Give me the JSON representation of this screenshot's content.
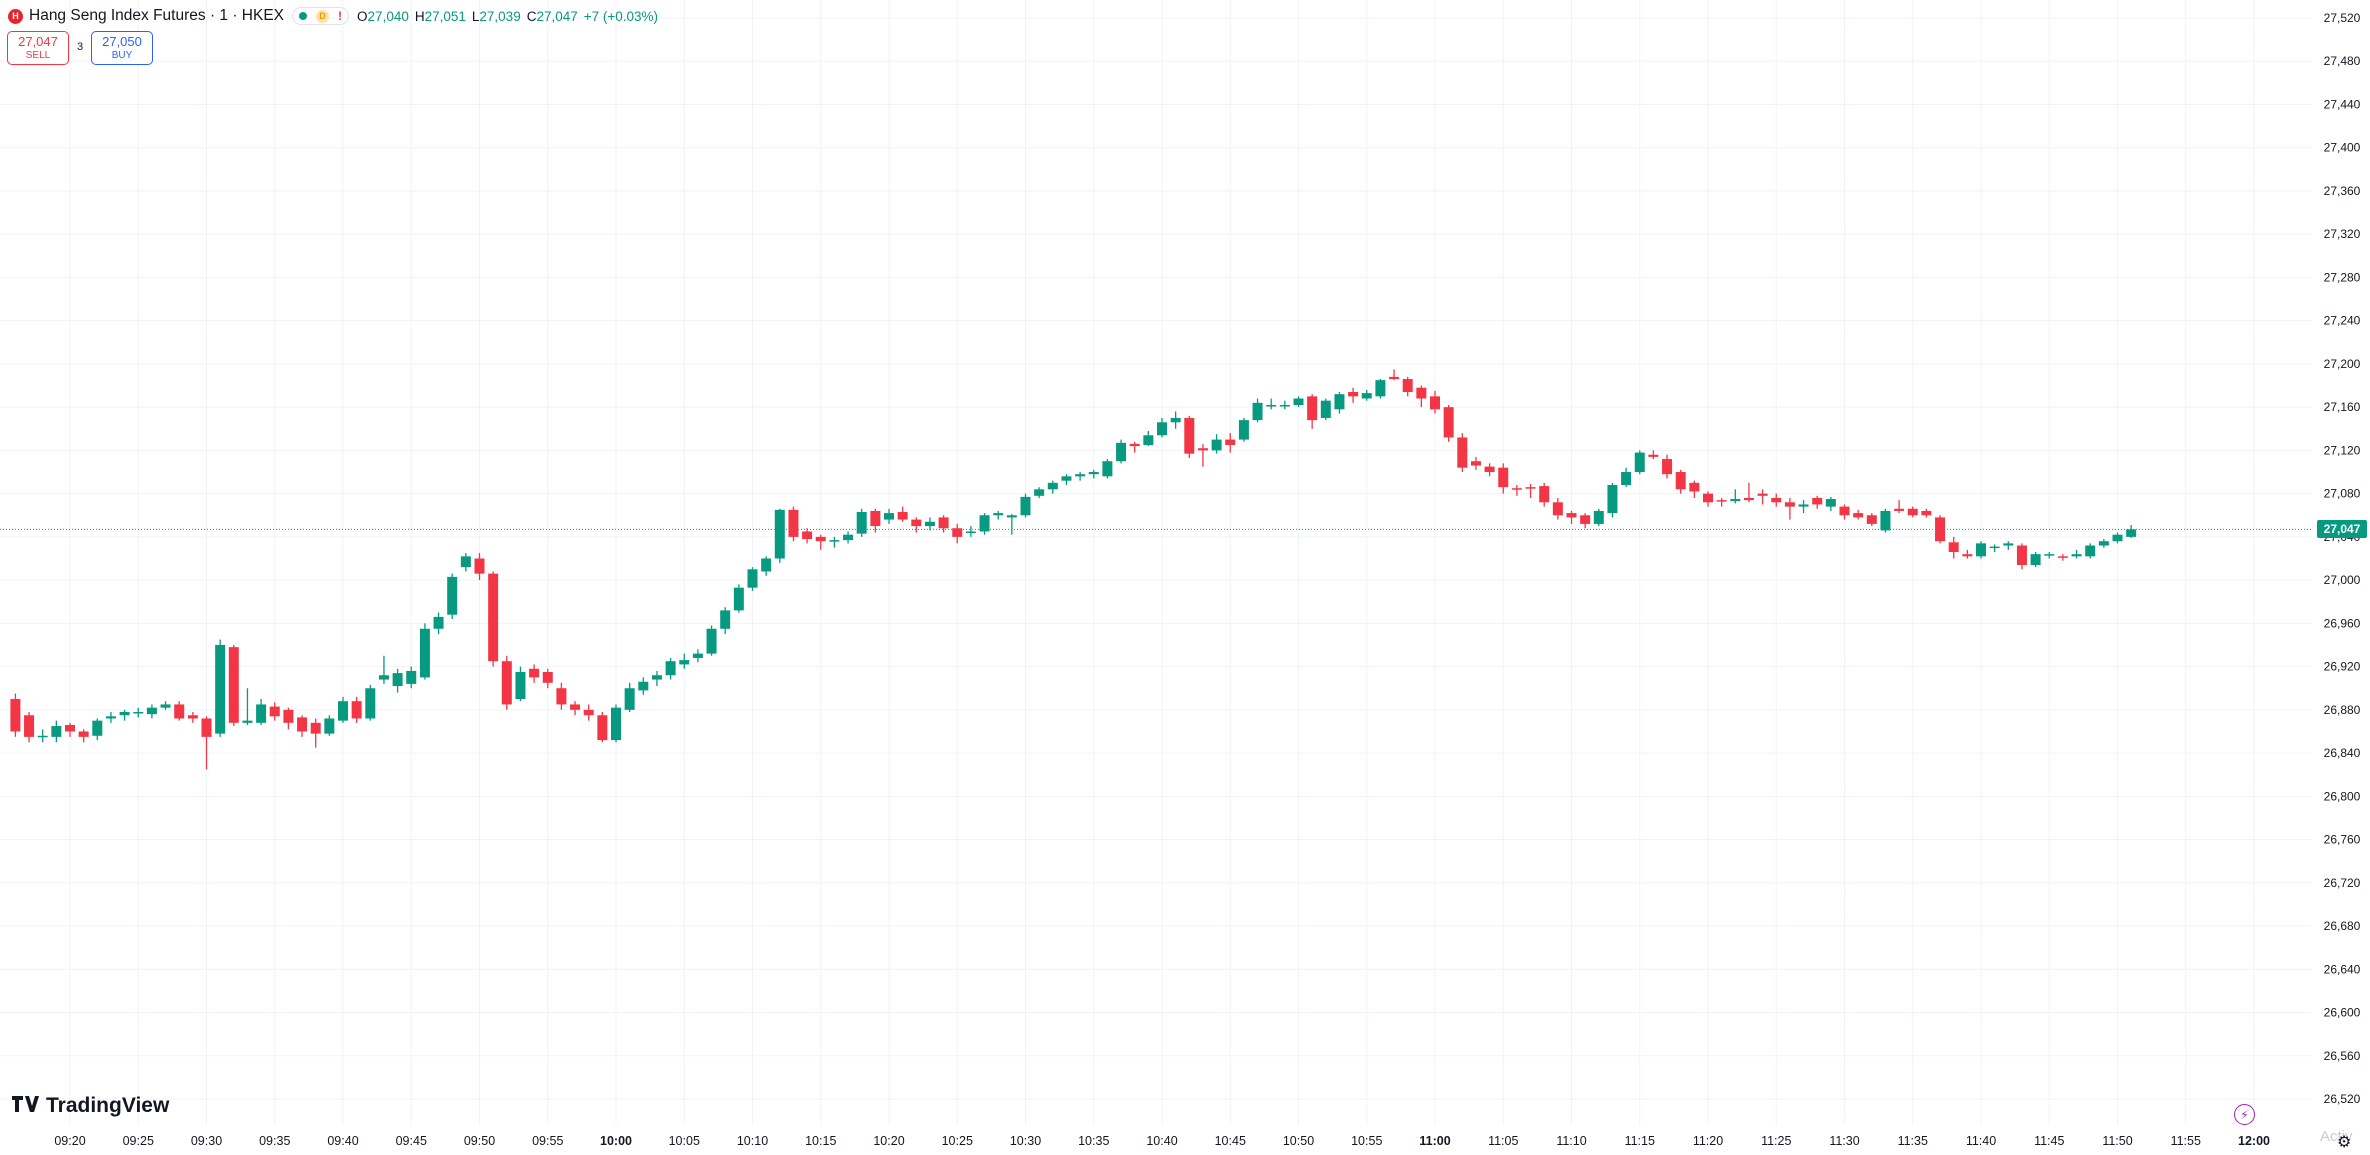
{
  "header": {
    "symbol_title": "Hang Seng Index Futures · 1 · HKEX",
    "badge_letter": "H",
    "status_d": "D",
    "status_warn": "!",
    "ohlc": {
      "open_label": "O",
      "open": "27,040",
      "high_label": "H",
      "high": "27,051",
      "low_label": "L",
      "low": "27,039",
      "close_label": "C",
      "close": "27,047",
      "change": "+7 (+0.03%)"
    }
  },
  "trade": {
    "sell_price": "27,047",
    "sell_label": "SELL",
    "buy_price": "27,050",
    "buy_label": "BUY",
    "spread": "3"
  },
  "branding": {
    "logo_text": "TradingView"
  },
  "current_price": "27,047",
  "watermark": "Activ",
  "colors": {
    "up": "#089981",
    "down": "#f23645",
    "grid": "#f0f3fa",
    "accent": "#2962ff"
  },
  "icons": {
    "bolt": "bolt-icon",
    "settings": "gear-icon"
  },
  "chart_data": {
    "type": "candlestick",
    "interval": "1",
    "ylim": [
      26500,
      27540
    ],
    "y_ticks": [
      "27,520",
      "27,480",
      "27,440",
      "27,400",
      "27,360",
      "27,320",
      "27,280",
      "27,240",
      "27,200",
      "27,160",
      "27,120",
      "27,080",
      "27,040",
      "27,000",
      "26,960",
      "26,920",
      "26,880",
      "26,840",
      "26,800",
      "26,760",
      "26,720",
      "26,680",
      "26,640",
      "26,600",
      "26,560",
      "26,520"
    ],
    "x_ticks": [
      "09:20",
      "09:25",
      "09:30",
      "09:35",
      "09:40",
      "09:45",
      "09:50",
      "09:55",
      "10:00",
      "10:05",
      "10:10",
      "10:15",
      "10:20",
      "10:25",
      "10:30",
      "10:35",
      "10:40",
      "10:45",
      "10:50",
      "10:55",
      "11:00",
      "11:05",
      "11:10",
      "11:15",
      "11:20",
      "11:25",
      "11:30",
      "11:35",
      "11:40",
      "11:45",
      "11:50",
      "11:55",
      "12:00"
    ],
    "bold_x_ticks": [
      "10:00",
      "11:00",
      "12:00"
    ],
    "start_time": "09:16",
    "candles": [
      {
        "o": 26890,
        "h": 26895,
        "l": 26855,
        "c": 26860
      },
      {
        "o": 26875,
        "h": 26878,
        "l": 26850,
        "c": 26855
      },
      {
        "o": 26855,
        "h": 26862,
        "l": 26850,
        "c": 26856
      },
      {
        "o": 26855,
        "h": 26870,
        "l": 26850,
        "c": 26865
      },
      {
        "o": 26866,
        "h": 26868,
        "l": 26855,
        "c": 26860
      },
      {
        "o": 26860,
        "h": 26862,
        "l": 26850,
        "c": 26855
      },
      {
        "o": 26856,
        "h": 26872,
        "l": 26852,
        "c": 26870
      },
      {
        "o": 26872,
        "h": 26878,
        "l": 26868,
        "c": 26874
      },
      {
        "o": 26875,
        "h": 26880,
        "l": 26870,
        "c": 26878
      },
      {
        "o": 26878,
        "h": 26882,
        "l": 26873,
        "c": 26878
      },
      {
        "o": 26876,
        "h": 26885,
        "l": 26872,
        "c": 26882
      },
      {
        "o": 26882,
        "h": 26888,
        "l": 26880,
        "c": 26885
      },
      {
        "o": 26885,
        "h": 26888,
        "l": 26870,
        "c": 26872
      },
      {
        "o": 26875,
        "h": 26878,
        "l": 26868,
        "c": 26872
      },
      {
        "o": 26872,
        "h": 26874,
        "l": 26825,
        "c": 26855
      },
      {
        "o": 26858,
        "h": 26945,
        "l": 26855,
        "c": 26940
      },
      {
        "o": 26938,
        "h": 26940,
        "l": 26865,
        "c": 26868
      },
      {
        "o": 26868,
        "h": 26900,
        "l": 26866,
        "c": 26870
      },
      {
        "o": 26868,
        "h": 26890,
        "l": 26866,
        "c": 26885
      },
      {
        "o": 26883,
        "h": 26887,
        "l": 26870,
        "c": 26874
      },
      {
        "o": 26880,
        "h": 26882,
        "l": 26862,
        "c": 26868
      },
      {
        "o": 26873,
        "h": 26875,
        "l": 26855,
        "c": 26860
      },
      {
        "o": 26868,
        "h": 26872,
        "l": 26845,
        "c": 26858
      },
      {
        "o": 26858,
        "h": 26875,
        "l": 26856,
        "c": 26872
      },
      {
        "o": 26870,
        "h": 26892,
        "l": 26868,
        "c": 26888
      },
      {
        "o": 26888,
        "h": 26892,
        "l": 26868,
        "c": 26872
      },
      {
        "o": 26872,
        "h": 26903,
        "l": 26870,
        "c": 26900
      },
      {
        "o": 26908,
        "h": 26930,
        "l": 26904,
        "c": 26912
      },
      {
        "o": 26902,
        "h": 26918,
        "l": 26896,
        "c": 26914
      },
      {
        "o": 26904,
        "h": 26920,
        "l": 26900,
        "c": 26916
      },
      {
        "o": 26910,
        "h": 26960,
        "l": 26908,
        "c": 26955
      },
      {
        "o": 26955,
        "h": 26970,
        "l": 26950,
        "c": 26966
      },
      {
        "o": 26968,
        "h": 27006,
        "l": 26964,
        "c": 27003
      },
      {
        "o": 27012,
        "h": 27025,
        "l": 27008,
        "c": 27022
      },
      {
        "o": 27020,
        "h": 27025,
        "l": 27000,
        "c": 27006
      },
      {
        "o": 27006,
        "h": 27008,
        "l": 26920,
        "c": 26925
      },
      {
        "o": 26925,
        "h": 26930,
        "l": 26880,
        "c": 26885
      },
      {
        "o": 26890,
        "h": 26920,
        "l": 26888,
        "c": 26915
      },
      {
        "o": 26918,
        "h": 26922,
        "l": 26905,
        "c": 26910
      },
      {
        "o": 26915,
        "h": 26918,
        "l": 26900,
        "c": 26905
      },
      {
        "o": 26900,
        "h": 26905,
        "l": 26880,
        "c": 26885
      },
      {
        "o": 26885,
        "h": 26888,
        "l": 26875,
        "c": 26880
      },
      {
        "o": 26880,
        "h": 26885,
        "l": 26870,
        "c": 26875
      },
      {
        "o": 26875,
        "h": 26878,
        "l": 26850,
        "c": 26852
      },
      {
        "o": 26852,
        "h": 26885,
        "l": 26850,
        "c": 26882
      },
      {
        "o": 26880,
        "h": 26905,
        "l": 26878,
        "c": 26900
      },
      {
        "o": 26898,
        "h": 26910,
        "l": 26894,
        "c": 26906
      },
      {
        "o": 26908,
        "h": 26916,
        "l": 26902,
        "c": 26912
      },
      {
        "o": 26912,
        "h": 26928,
        "l": 26908,
        "c": 26925
      },
      {
        "o": 26922,
        "h": 26932,
        "l": 26918,
        "c": 26926
      },
      {
        "o": 26928,
        "h": 26936,
        "l": 26924,
        "c": 26932
      },
      {
        "o": 26932,
        "h": 26958,
        "l": 26930,
        "c": 26955
      },
      {
        "o": 26955,
        "h": 26975,
        "l": 26950,
        "c": 26972
      },
      {
        "o": 26972,
        "h": 26996,
        "l": 26970,
        "c": 26993
      },
      {
        "o": 26993,
        "h": 27012,
        "l": 26990,
        "c": 27010
      },
      {
        "o": 27008,
        "h": 27022,
        "l": 27004,
        "c": 27020
      },
      {
        "o": 27020,
        "h": 27066,
        "l": 27016,
        "c": 27065
      },
      {
        "o": 27065,
        "h": 27068,
        "l": 27036,
        "c": 27040
      },
      {
        "o": 27045,
        "h": 27048,
        "l": 27034,
        "c": 27038
      },
      {
        "o": 27040,
        "h": 27042,
        "l": 27028,
        "c": 27036
      },
      {
        "o": 27036,
        "h": 27040,
        "l": 27030,
        "c": 27037
      },
      {
        "o": 27037,
        "h": 27045,
        "l": 27034,
        "c": 27042
      },
      {
        "o": 27043,
        "h": 27066,
        "l": 27040,
        "c": 27063
      },
      {
        "o": 27064,
        "h": 27066,
        "l": 27044,
        "c": 27050
      },
      {
        "o": 27056,
        "h": 27066,
        "l": 27052,
        "c": 27062
      },
      {
        "o": 27063,
        "h": 27068,
        "l": 27054,
        "c": 27056
      },
      {
        "o": 27056,
        "h": 27058,
        "l": 27044,
        "c": 27050
      },
      {
        "o": 27050,
        "h": 27058,
        "l": 27046,
        "c": 27054
      },
      {
        "o": 27058,
        "h": 27060,
        "l": 27044,
        "c": 27048
      },
      {
        "o": 27048,
        "h": 27052,
        "l": 27034,
        "c": 27040
      },
      {
        "o": 27044,
        "h": 27050,
        "l": 27040,
        "c": 27045
      },
      {
        "o": 27045,
        "h": 27062,
        "l": 27042,
        "c": 27060
      },
      {
        "o": 27060,
        "h": 27064,
        "l": 27056,
        "c": 27062
      },
      {
        "o": 27058,
        "h": 27061,
        "l": 27042,
        "c": 27060
      },
      {
        "o": 27060,
        "h": 27080,
        "l": 27058,
        "c": 27077
      },
      {
        "o": 27078,
        "h": 27086,
        "l": 27076,
        "c": 27084
      },
      {
        "o": 27084,
        "h": 27092,
        "l": 27080,
        "c": 27090
      },
      {
        "o": 27092,
        "h": 27098,
        "l": 27088,
        "c": 27096
      },
      {
        "o": 27096,
        "h": 27100,
        "l": 27092,
        "c": 27098
      },
      {
        "o": 27098,
        "h": 27102,
        "l": 27094,
        "c": 27100
      },
      {
        "o": 27096,
        "h": 27112,
        "l": 27094,
        "c": 27110
      },
      {
        "o": 27110,
        "h": 27130,
        "l": 27108,
        "c": 27127
      },
      {
        "o": 27126,
        "h": 27128,
        "l": 27118,
        "c": 27124
      },
      {
        "o": 27125,
        "h": 27138,
        "l": 27124,
        "c": 27134
      },
      {
        "o": 27134,
        "h": 27150,
        "l": 27132,
        "c": 27146
      },
      {
        "o": 27146,
        "h": 27156,
        "l": 27140,
        "c": 27150
      },
      {
        "o": 27150,
        "h": 27152,
        "l": 27113,
        "c": 27117
      },
      {
        "o": 27122,
        "h": 27126,
        "l": 27105,
        "c": 27120
      },
      {
        "o": 27120,
        "h": 27135,
        "l": 27117,
        "c": 27130
      },
      {
        "o": 27130,
        "h": 27136,
        "l": 27118,
        "c": 27125
      },
      {
        "o": 27130,
        "h": 27150,
        "l": 27128,
        "c": 27148
      },
      {
        "o": 27148,
        "h": 27168,
        "l": 27146,
        "c": 27164
      },
      {
        "o": 27162,
        "h": 27168,
        "l": 27158,
        "c": 27162
      },
      {
        "o": 27162,
        "h": 27166,
        "l": 27158,
        "c": 27162
      },
      {
        "o": 27162,
        "h": 27170,
        "l": 27160,
        "c": 27168
      },
      {
        "o": 27170,
        "h": 27172,
        "l": 27140,
        "c": 27148
      },
      {
        "o": 27150,
        "h": 27168,
        "l": 27148,
        "c": 27166
      },
      {
        "o": 27158,
        "h": 27174,
        "l": 27154,
        "c": 27172
      },
      {
        "o": 27174,
        "h": 27178,
        "l": 27164,
        "c": 27170
      },
      {
        "o": 27168,
        "h": 27176,
        "l": 27166,
        "c": 27173
      },
      {
        "o": 27170,
        "h": 27186,
        "l": 27168,
        "c": 27185
      },
      {
        "o": 27188,
        "h": 27195,
        "l": 27185,
        "c": 27186
      },
      {
        "o": 27186,
        "h": 27188,
        "l": 27170,
        "c": 27174
      },
      {
        "o": 27178,
        "h": 27180,
        "l": 27160,
        "c": 27168
      },
      {
        "o": 27170,
        "h": 27175,
        "l": 27154,
        "c": 27158
      },
      {
        "o": 27160,
        "h": 27162,
        "l": 27128,
        "c": 27132
      },
      {
        "o": 27132,
        "h": 27136,
        "l": 27100,
        "c": 27104
      },
      {
        "o": 27110,
        "h": 27114,
        "l": 27102,
        "c": 27106
      },
      {
        "o": 27105,
        "h": 27108,
        "l": 27096,
        "c": 27100
      },
      {
        "o": 27104,
        "h": 27108,
        "l": 27080,
        "c": 27086
      },
      {
        "o": 27085,
        "h": 27088,
        "l": 27078,
        "c": 27084
      },
      {
        "o": 27086,
        "h": 27089,
        "l": 27076,
        "c": 27085
      },
      {
        "o": 27087,
        "h": 27090,
        "l": 27068,
        "c": 27072
      },
      {
        "o": 27072,
        "h": 27076,
        "l": 27056,
        "c": 27060
      },
      {
        "o": 27062,
        "h": 27064,
        "l": 27052,
        "c": 27058
      },
      {
        "o": 27060,
        "h": 27062,
        "l": 27048,
        "c": 27052
      },
      {
        "o": 27052,
        "h": 27066,
        "l": 27050,
        "c": 27064
      },
      {
        "o": 27062,
        "h": 27090,
        "l": 27058,
        "c": 27088
      },
      {
        "o": 27088,
        "h": 27104,
        "l": 27086,
        "c": 27100
      },
      {
        "o": 27100,
        "h": 27120,
        "l": 27098,
        "c": 27118
      },
      {
        "o": 27116,
        "h": 27120,
        "l": 27112,
        "c": 27114
      },
      {
        "o": 27112,
        "h": 27116,
        "l": 27094,
        "c": 27098
      },
      {
        "o": 27100,
        "h": 27102,
        "l": 27080,
        "c": 27084
      },
      {
        "o": 27090,
        "h": 27092,
        "l": 27076,
        "c": 27082
      },
      {
        "o": 27080,
        "h": 27082,
        "l": 27068,
        "c": 27072
      },
      {
        "o": 27074,
        "h": 27076,
        "l": 27068,
        "c": 27073
      },
      {
        "o": 27073,
        "h": 27084,
        "l": 27071,
        "c": 27075
      },
      {
        "o": 27076,
        "h": 27090,
        "l": 27072,
        "c": 27074
      },
      {
        "o": 27080,
        "h": 27084,
        "l": 27070,
        "c": 27078
      },
      {
        "o": 27076,
        "h": 27080,
        "l": 27068,
        "c": 27072
      },
      {
        "o": 27072,
        "h": 27076,
        "l": 27056,
        "c": 27068
      },
      {
        "o": 27068,
        "h": 27074,
        "l": 27062,
        "c": 27070
      },
      {
        "o": 27076,
        "h": 27078,
        "l": 27066,
        "c": 27070
      },
      {
        "o": 27068,
        "h": 27077,
        "l": 27064,
        "c": 27075
      },
      {
        "o": 27068,
        "h": 27070,
        "l": 27056,
        "c": 27060
      },
      {
        "o": 27062,
        "h": 27065,
        "l": 27056,
        "c": 27058
      },
      {
        "o": 27060,
        "h": 27062,
        "l": 27050,
        "c": 27052
      },
      {
        "o": 27046,
        "h": 27066,
        "l": 27044,
        "c": 27064
      },
      {
        "o": 27066,
        "h": 27074,
        "l": 27062,
        "c": 27064
      },
      {
        "o": 27066,
        "h": 27068,
        "l": 27058,
        "c": 27060
      },
      {
        "o": 27064,
        "h": 27066,
        "l": 27058,
        "c": 27060
      },
      {
        "o": 27058,
        "h": 27060,
        "l": 27034,
        "c": 27036
      },
      {
        "o": 27035,
        "h": 27040,
        "l": 27020,
        "c": 27026
      },
      {
        "o": 27024,
        "h": 27028,
        "l": 27020,
        "c": 27022
      },
      {
        "o": 27022,
        "h": 27036,
        "l": 27020,
        "c": 27034
      },
      {
        "o": 27030,
        "h": 27033,
        "l": 27026,
        "c": 27031
      },
      {
        "o": 27032,
        "h": 27036,
        "l": 27028,
        "c": 27034
      },
      {
        "o": 27032,
        "h": 27034,
        "l": 27010,
        "c": 27014
      },
      {
        "o": 27014,
        "h": 27026,
        "l": 27012,
        "c": 27024
      },
      {
        "o": 27023,
        "h": 27026,
        "l": 27020,
        "c": 27024
      },
      {
        "o": 27022,
        "h": 27024,
        "l": 27018,
        "c": 27021
      },
      {
        "o": 27022,
        "h": 27028,
        "l": 27020,
        "c": 27024
      },
      {
        "o": 27022,
        "h": 27034,
        "l": 27020,
        "c": 27032
      },
      {
        "o": 27032,
        "h": 27038,
        "l": 27030,
        "c": 27036
      },
      {
        "o": 27036,
        "h": 27044,
        "l": 27034,
        "c": 27042
      },
      {
        "o": 27040,
        "h": 27051,
        "l": 27039,
        "c": 27047
      }
    ]
  }
}
